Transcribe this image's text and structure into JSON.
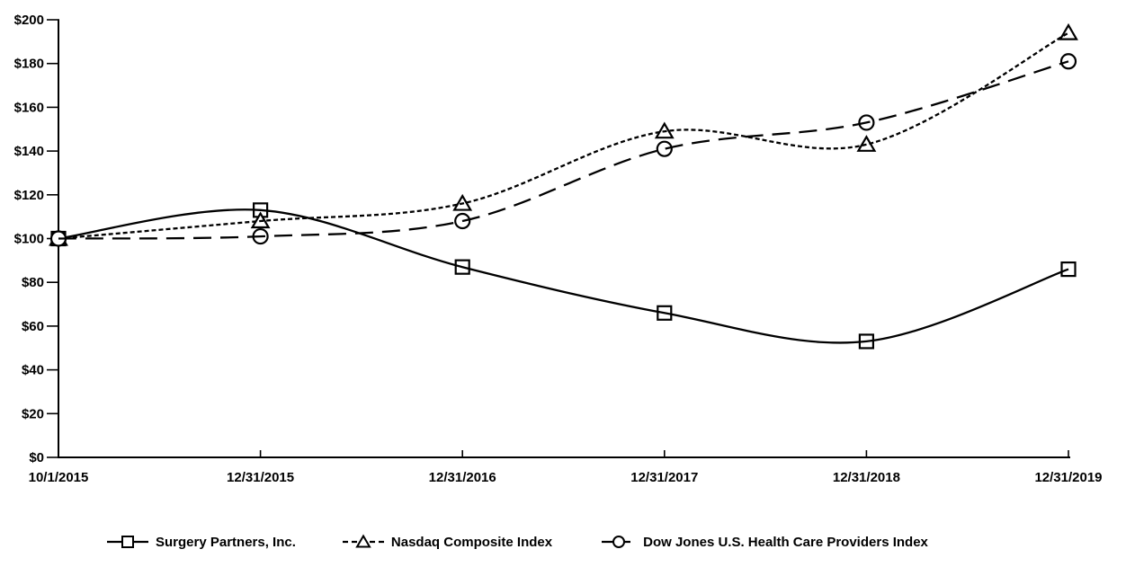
{
  "colors": {
    "background": "#ffffff",
    "axis": "#000000",
    "text": "#000000",
    "series": "#000000",
    "marker_fill": "#ffffff"
  },
  "chart_data": {
    "type": "line",
    "title": "",
    "xlabel": "",
    "ylabel": "",
    "x_categories": [
      "10/1/2015",
      "12/31/2015",
      "12/31/2016",
      "12/31/2017",
      "12/31/2018",
      "12/31/2019"
    ],
    "y_tick_labels": [
      "$0",
      "$20",
      "$40",
      "$60",
      "$80",
      "$100",
      "$120",
      "$140",
      "$160",
      "$180",
      "$200"
    ],
    "ylim": [
      0,
      200
    ],
    "grid": false,
    "legend_position": "bottom",
    "line_smoothing": true,
    "series": [
      {
        "name": "Surgery Partners, Inc.",
        "marker": "square",
        "line_style": "solid",
        "color": "#000000",
        "values": [
          100,
          113,
          87,
          66,
          53,
          86
        ]
      },
      {
        "name": "Nasdaq Composite Index",
        "marker": "triangle",
        "line_style": "dotted",
        "color": "#000000",
        "values": [
          100,
          108,
          116,
          149,
          143,
          194
        ]
      },
      {
        "name": "Dow Jones U.S. Health Care Providers Index",
        "marker": "circle",
        "line_style": "dashed",
        "color": "#000000",
        "values": [
          100,
          101,
          108,
          141,
          153,
          181
        ]
      }
    ]
  }
}
